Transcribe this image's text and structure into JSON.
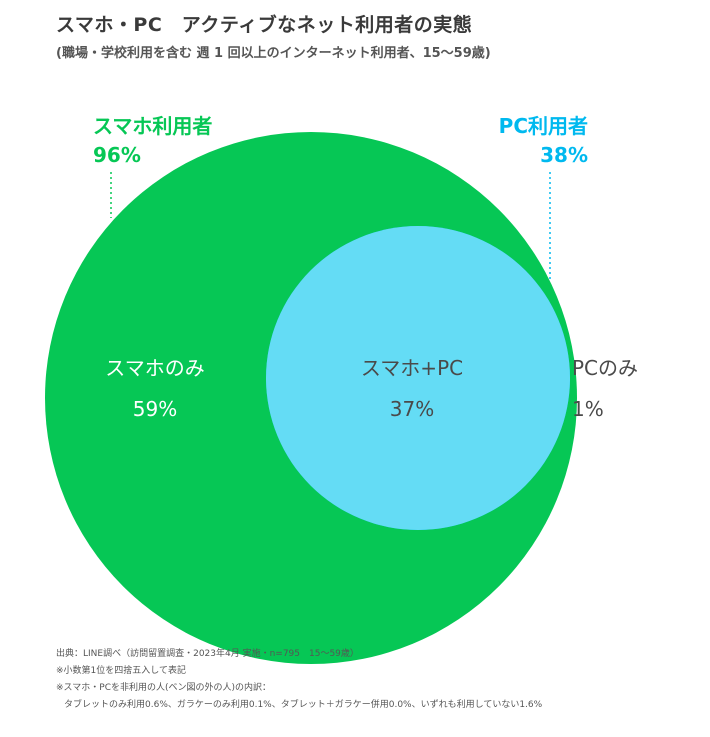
{
  "title": "スマホ・PC　アクティブなネット利用者の実態",
  "subtitle": "(職場・学校利用を含む 週 1 回以上のインターネット利用者、15〜59歳)",
  "colors": {
    "smartphone": "#06c755",
    "pc": "#64dcf5",
    "pc_only": "#00b9ef",
    "smartphone_label": "#06c755",
    "pc_label": "#00b9ef",
    "inner_text_light": "#ffffff",
    "inner_text_dark": "#4a4a4a"
  },
  "chart_data": {
    "type": "venn",
    "sets": [
      {
        "name": "スマホ利用者",
        "value_label": "96%",
        "value": 96
      },
      {
        "name": "PC利用者",
        "value_label": "38%",
        "value": 38
      }
    ],
    "regions": [
      {
        "label": "スマホのみ",
        "value_label": "59%",
        "value": 59
      },
      {
        "label": "スマホ+PC",
        "value_label": "37%",
        "value": 37
      },
      {
        "label": "PCのみ",
        "value_label": "1%",
        "value": 1
      }
    ]
  },
  "notes": [
    "出典：LINE調べ（訪問留置調査・2023年4月 実施・n=795　15〜59歳）",
    "※小数第1位を四捨五入して表記",
    "※スマホ・PCを非利用の人(ベン図の外の人)の内訳：",
    "タブレットのみ利用0.6%、ガラケーのみ利用0.1%、タブレット＋ガラケー併用0.0%、いずれも利用していない1.6%"
  ]
}
